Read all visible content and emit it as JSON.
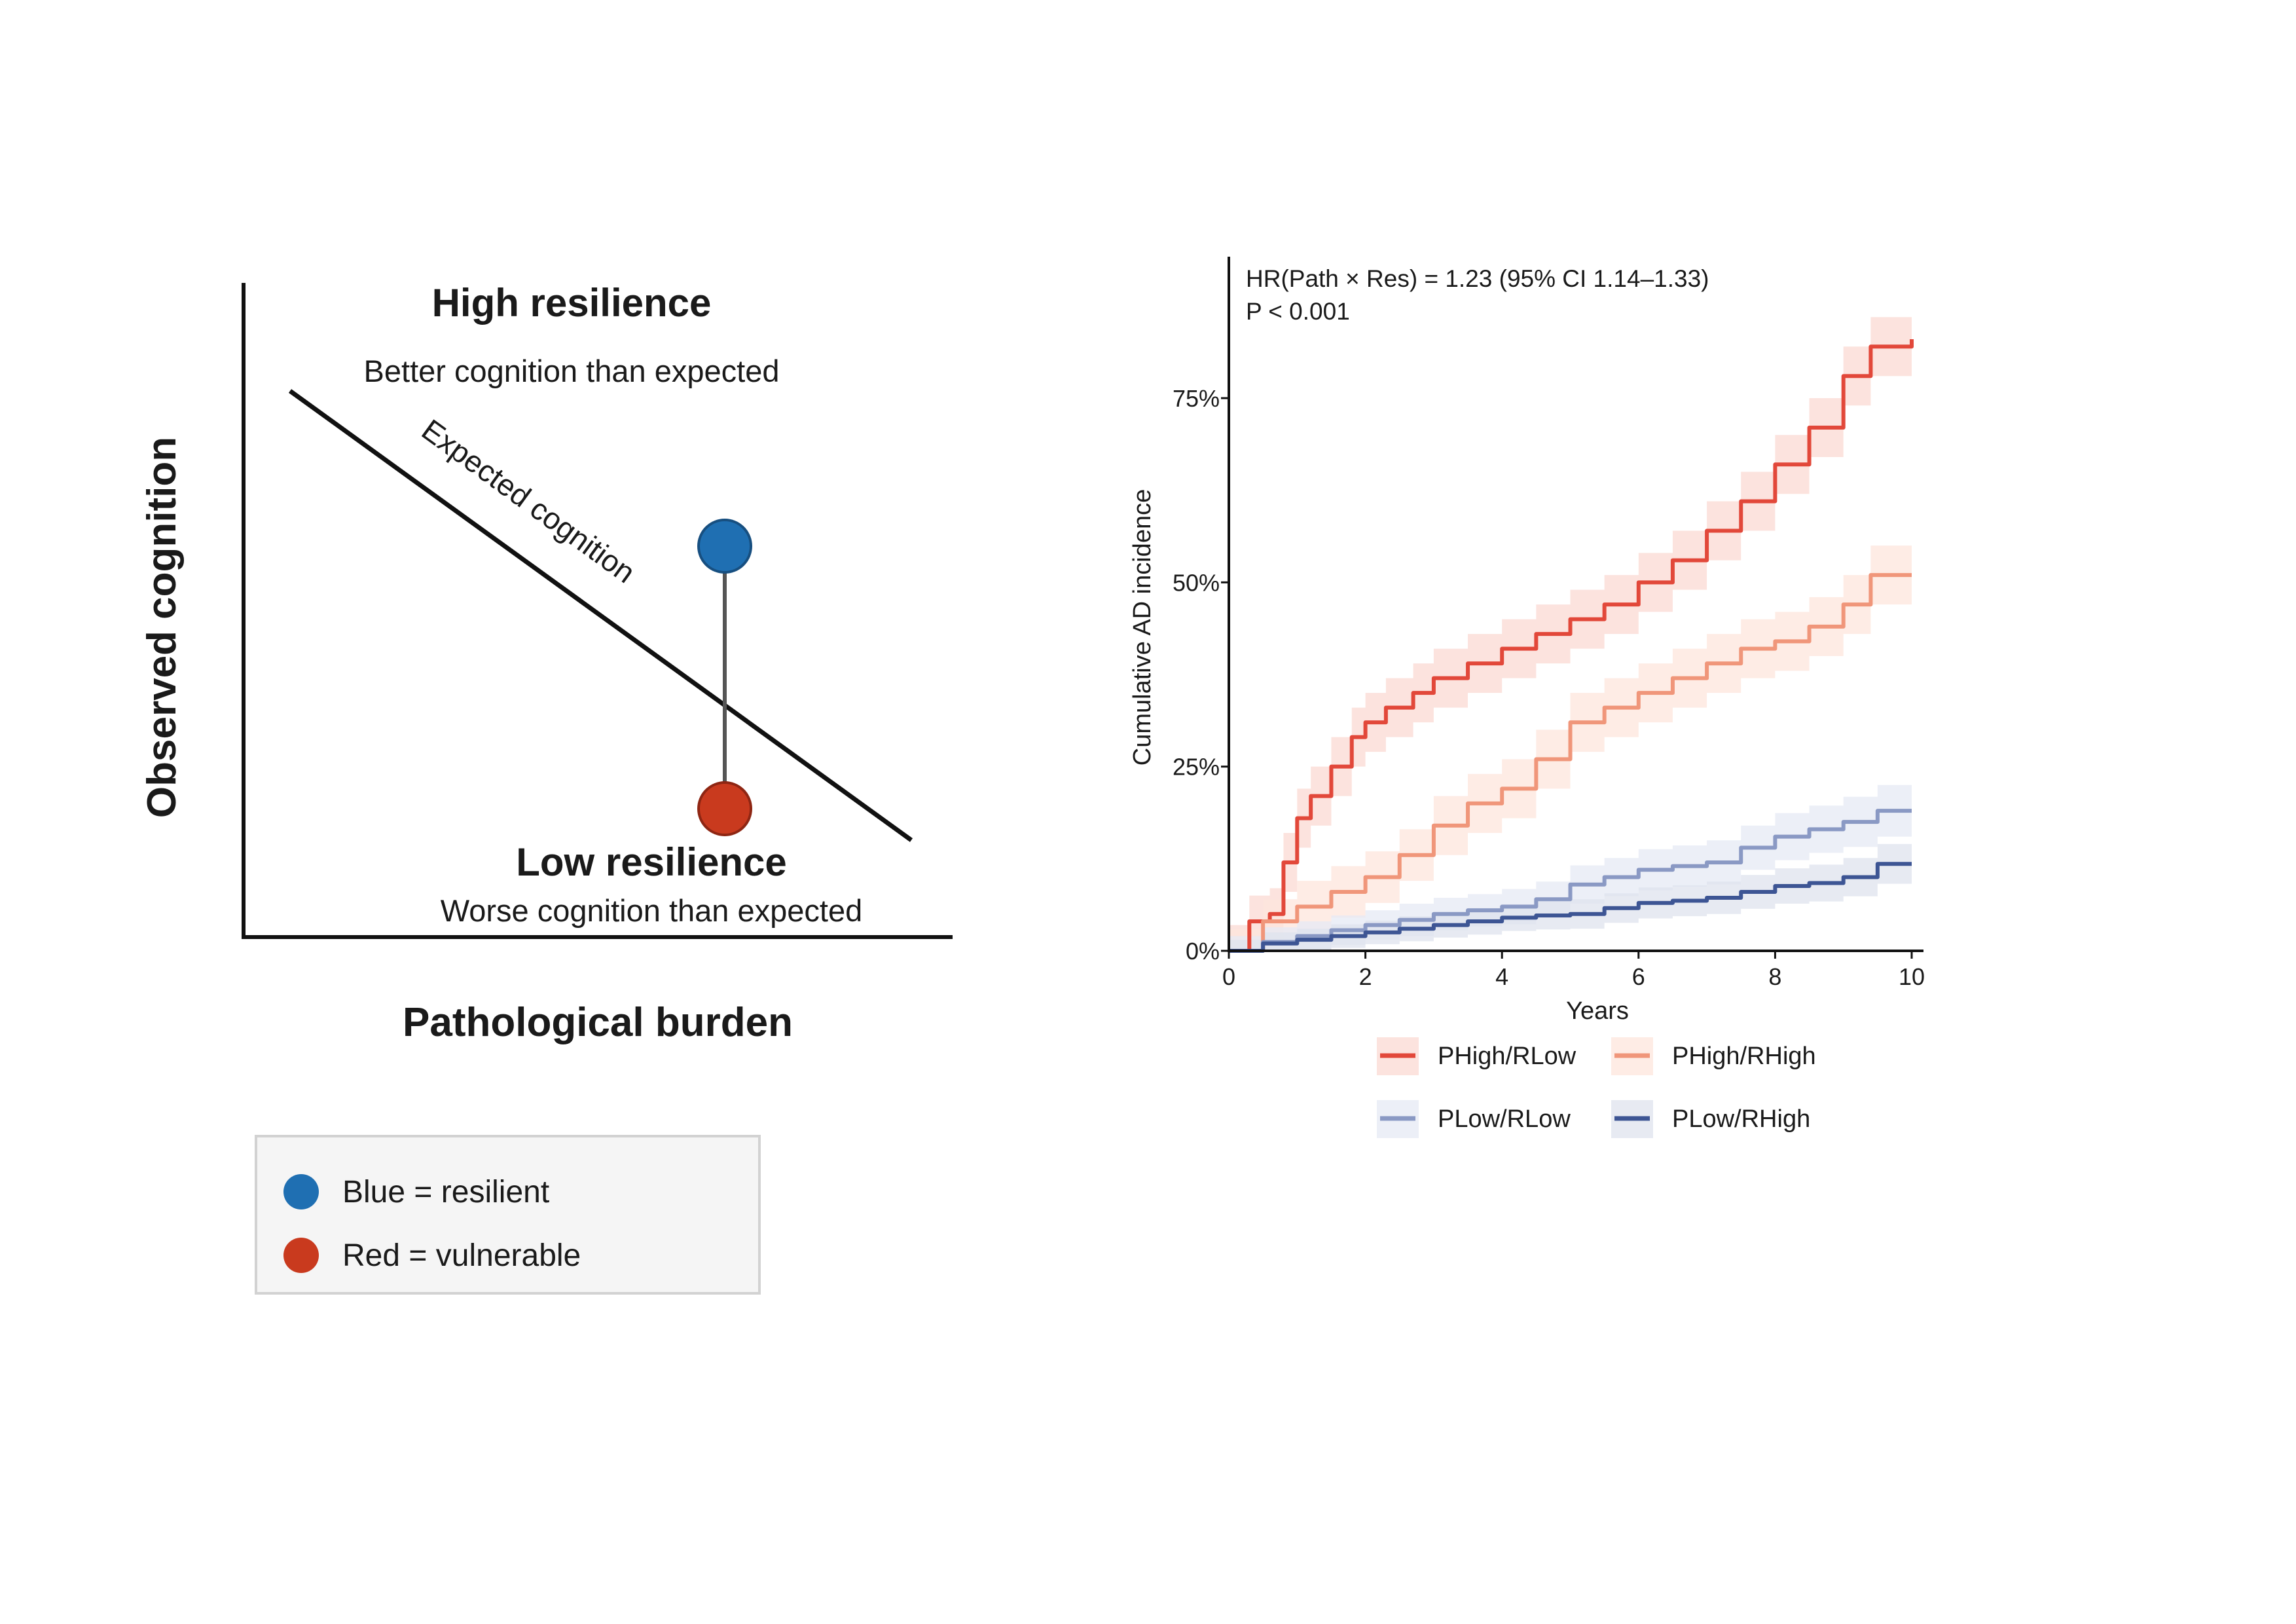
{
  "concept": {
    "ylabel": "Observed cognition",
    "xlabel": "Pathological burden",
    "high_title": "High resilience",
    "high_sub": "Better cognition than expected",
    "low_title": "Low resilience",
    "low_sub": "Worse cognition than expected",
    "line_label": "Expected cognition",
    "colors": {
      "blue": "#1f6fb2",
      "red": "#c93a1e"
    },
    "legend": [
      {
        "label": "Blue = resilient",
        "color": "#1f6fb2"
      },
      {
        "label": "Red = vulnerable",
        "color": "#c93a1e"
      }
    ]
  },
  "chart_data": {
    "type": "line",
    "annotation_line1": "HR(Path × Res) = 1.23 (95% CI 1.14–1.33)",
    "annotation_line2": "P < 0.001",
    "xlabel": "Years",
    "ylabel": "Cumulative AD incidence",
    "xlim": [
      0,
      10
    ],
    "ylim": [
      0,
      0.9
    ],
    "xticks": [
      0,
      2,
      4,
      6,
      8,
      10
    ],
    "xtick_labels": [
      "0",
      "2",
      "4",
      "6",
      "8",
      "10"
    ],
    "yticks": [
      0,
      0.25,
      0.5,
      0.75
    ],
    "ytick_labels": [
      "0%",
      "25%",
      "50%",
      "75%"
    ],
    "legend_position": "bottom",
    "series": [
      {
        "name": "PHigh/RLow",
        "color": "#e2483a",
        "band_color": "#fbd9d3",
        "x": [
          0,
          0.3,
          0.6,
          0.8,
          1.0,
          1.2,
          1.5,
          1.8,
          2.0,
          2.3,
          2.7,
          3.0,
          3.5,
          4.0,
          4.5,
          5.0,
          5.5,
          6.0,
          6.5,
          7.0,
          7.5,
          8.0,
          8.5,
          9.0,
          9.4,
          10.0
        ],
        "y": [
          0,
          0.04,
          0.05,
          0.12,
          0.18,
          0.21,
          0.25,
          0.29,
          0.31,
          0.33,
          0.35,
          0.37,
          0.39,
          0.41,
          0.43,
          0.45,
          0.47,
          0.5,
          0.53,
          0.57,
          0.61,
          0.66,
          0.71,
          0.78,
          0.82,
          0.83
        ],
        "band": [
          0.035,
          0.035,
          0.035,
          0.04,
          0.04,
          0.04,
          0.04,
          0.04,
          0.04,
          0.04,
          0.04,
          0.04,
          0.04,
          0.04,
          0.04,
          0.04,
          0.04,
          0.04,
          0.04,
          0.04,
          0.04,
          0.04,
          0.04,
          0.04,
          0.04,
          0.04
        ]
      },
      {
        "name": "PHigh/RHigh",
        "color": "#f0967a",
        "band_color": "#fde6dc",
        "x": [
          0,
          0.5,
          1.0,
          1.5,
          2.0,
          2.5,
          3.0,
          3.5,
          4.0,
          4.5,
          5.0,
          5.5,
          6.0,
          6.5,
          7.0,
          7.5,
          8.0,
          8.5,
          9.0,
          9.4,
          10.0
        ],
        "y": [
          0,
          0.04,
          0.06,
          0.08,
          0.1,
          0.13,
          0.17,
          0.2,
          0.22,
          0.26,
          0.31,
          0.33,
          0.35,
          0.37,
          0.39,
          0.41,
          0.42,
          0.44,
          0.47,
          0.51,
          0.51
        ],
        "band": [
          0.03,
          0.03,
          0.035,
          0.035,
          0.035,
          0.035,
          0.04,
          0.04,
          0.04,
          0.04,
          0.04,
          0.04,
          0.04,
          0.04,
          0.04,
          0.04,
          0.04,
          0.04,
          0.04,
          0.04,
          0.04
        ]
      },
      {
        "name": "PLow/RLow",
        "color": "#8a99c4",
        "band_color": "#e6eaf4",
        "x": [
          0,
          0.5,
          1.0,
          1.5,
          2.0,
          2.5,
          3.0,
          3.5,
          4.0,
          4.5,
          5.0,
          5.5,
          6.0,
          6.5,
          7.0,
          7.5,
          8.0,
          8.5,
          9.0,
          9.5,
          10.0
        ],
        "y": [
          0,
          0.012,
          0.02,
          0.028,
          0.035,
          0.042,
          0.05,
          0.055,
          0.06,
          0.07,
          0.09,
          0.1,
          0.11,
          0.115,
          0.12,
          0.14,
          0.155,
          0.165,
          0.175,
          0.19,
          0.19
        ],
        "band": [
          0.02,
          0.02,
          0.02,
          0.02,
          0.02,
          0.022,
          0.022,
          0.022,
          0.024,
          0.024,
          0.026,
          0.026,
          0.028,
          0.028,
          0.03,
          0.03,
          0.032,
          0.032,
          0.034,
          0.035,
          0.035
        ]
      },
      {
        "name": "PLow/RHigh",
        "color": "#3d5594",
        "band_color": "#dfe3ee",
        "x": [
          0,
          0.5,
          1.0,
          1.5,
          2.0,
          2.5,
          3.0,
          3.5,
          4.0,
          4.5,
          5.0,
          5.5,
          6.0,
          6.5,
          7.0,
          7.5,
          8.0,
          8.5,
          9.0,
          9.5,
          10.0
        ],
        "y": [
          0,
          0.01,
          0.015,
          0.02,
          0.025,
          0.03,
          0.035,
          0.04,
          0.045,
          0.048,
          0.05,
          0.058,
          0.065,
          0.068,
          0.072,
          0.08,
          0.088,
          0.092,
          0.1,
          0.118,
          0.118
        ],
        "band": [
          0.015,
          0.015,
          0.015,
          0.016,
          0.016,
          0.017,
          0.017,
          0.018,
          0.018,
          0.019,
          0.02,
          0.02,
          0.021,
          0.021,
          0.022,
          0.023,
          0.024,
          0.025,
          0.026,
          0.027,
          0.028
        ]
      }
    ]
  }
}
